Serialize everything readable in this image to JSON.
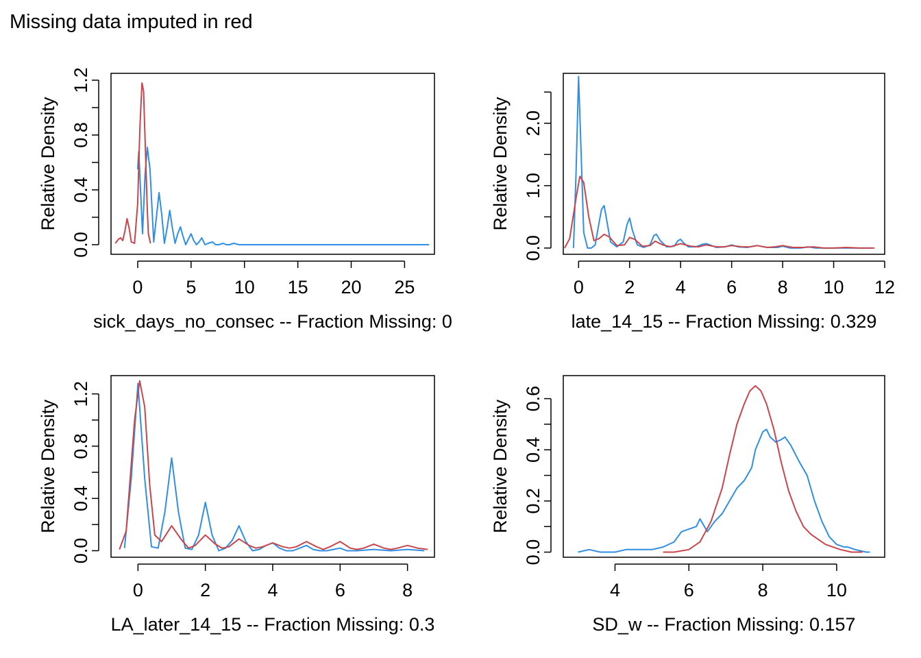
{
  "page_title": "Missing data imputed in red",
  "colors": {
    "observed": "#2f8ee6",
    "imputed": "#c8464b",
    "frame": "#000000"
  },
  "chart_data": [
    {
      "type": "line",
      "title": "",
      "xlabel": "sick_days_no_consec   --  Fraction Missing: 0",
      "ylabel": "Relative Density",
      "xlim": [
        -2.5,
        27.8
      ],
      "ylim": [
        -0.07,
        1.25
      ],
      "xticks": [
        0,
        5,
        10,
        15,
        20,
        25
      ],
      "xtick_labels": [
        "0",
        "5",
        "10",
        "15",
        "20",
        "25"
      ],
      "yticks": [
        0.0,
        0.2,
        0.4,
        0.6,
        0.8,
        1.0,
        1.2
      ],
      "ytick_labels": [
        "0.0",
        "",
        "0.4",
        "",
        "0.8",
        "",
        "1.2"
      ],
      "grid": false,
      "series": [
        {
          "color": "#2f8ee6",
          "x": [
            0.0,
            0.1,
            0.45,
            0.7,
            0.9,
            1.15,
            1.5,
            1.75,
            2.0,
            2.25,
            2.5,
            2.75,
            3.0,
            3.25,
            3.5,
            3.75,
            4.0,
            4.25,
            4.5,
            4.75,
            5.0,
            5.25,
            5.5,
            5.75,
            6.0,
            6.3,
            6.6,
            7.0,
            7.3,
            7.6,
            8.0,
            8.3,
            8.6,
            9.0,
            9.5,
            10.0,
            27.3
          ],
          "y": [
            0.55,
            0.68,
            0.08,
            0.52,
            0.71,
            0.55,
            0.02,
            0.2,
            0.38,
            0.22,
            0.01,
            0.12,
            0.25,
            0.12,
            0.01,
            0.08,
            0.13,
            0.06,
            0.0,
            0.04,
            0.08,
            0.03,
            0.0,
            0.02,
            0.05,
            0.0,
            0.01,
            0.02,
            0.0,
            0.0,
            0.01,
            0.0,
            0.0,
            0.01,
            0.0,
            0.0,
            0.0
          ]
        },
        {
          "color": "#c8464b",
          "x": [
            -2.1,
            -1.8,
            -1.6,
            -1.4,
            -1.2,
            -1.0,
            -0.8,
            -0.6,
            -0.3,
            0.0,
            0.2,
            0.4,
            0.55,
            0.7,
            0.9,
            1.0,
            1.2
          ],
          "y": [
            0.01,
            0.04,
            0.05,
            0.03,
            0.1,
            0.19,
            0.12,
            0.02,
            0.01,
            0.3,
            0.85,
            1.18,
            1.12,
            0.75,
            0.25,
            0.08,
            0.01
          ]
        }
      ]
    },
    {
      "type": "line",
      "title": "",
      "xlabel": "late_14_15   --  Fraction Missing: 0.329",
      "ylabel": "Relative Density",
      "xlim": [
        -0.6,
        12.0
      ],
      "ylim": [
        -0.1,
        2.8
      ],
      "xticks": [
        0,
        2,
        4,
        6,
        8,
        10,
        12
      ],
      "xtick_labels": [
        "0",
        "2",
        "4",
        "6",
        "8",
        "10",
        "12"
      ],
      "yticks": [
        0.0,
        0.5,
        1.0,
        1.5,
        2.0,
        2.5
      ],
      "ytick_labels": [
        "0.0",
        "",
        "1.0",
        "",
        "2.0",
        ""
      ],
      "grid": false,
      "series": [
        {
          "color": "#2f8ee6",
          "x": [
            -0.2,
            -0.1,
            0.0,
            0.1,
            0.2,
            0.35,
            0.5,
            0.65,
            0.8,
            0.9,
            1.0,
            1.1,
            1.25,
            1.5,
            1.75,
            1.9,
            2.0,
            2.1,
            2.3,
            2.55,
            2.8,
            2.95,
            3.05,
            3.2,
            3.45,
            3.75,
            3.9,
            4.0,
            4.1,
            4.3,
            4.6,
            4.85,
            5.0,
            5.15,
            5.4,
            5.75,
            6.0,
            6.25,
            6.6,
            7.0,
            7.4,
            7.8,
            8.0,
            8.3,
            8.7,
            9.0,
            9.3,
            10.0,
            11.5
          ],
          "y": [
            0.0,
            1.2,
            2.75,
            1.5,
            0.25,
            0.0,
            0.0,
            0.05,
            0.4,
            0.62,
            0.68,
            0.45,
            0.1,
            0.02,
            0.1,
            0.38,
            0.48,
            0.3,
            0.05,
            0.01,
            0.05,
            0.2,
            0.22,
            0.12,
            0.02,
            0.03,
            0.12,
            0.14,
            0.09,
            0.02,
            0.02,
            0.06,
            0.07,
            0.05,
            0.01,
            0.02,
            0.05,
            0.02,
            0.01,
            0.04,
            0.01,
            0.01,
            0.03,
            0.0,
            0.0,
            0.02,
            0.0,
            0.0,
            0.0
          ]
        },
        {
          "color": "#c8464b",
          "x": [
            -0.55,
            -0.35,
            -0.1,
            0.05,
            0.2,
            0.4,
            0.6,
            0.8,
            1.0,
            1.2,
            1.5,
            1.8,
            2.0,
            2.2,
            2.5,
            2.8,
            3.0,
            3.3,
            3.6,
            4.0,
            4.4,
            4.7,
            5.0,
            5.4,
            5.7,
            6.0,
            6.4,
            6.7,
            7.0,
            7.4,
            7.7,
            8.0,
            8.4,
            8.8,
            9.2,
            9.6,
            10.0,
            10.5,
            11.0,
            11.6
          ],
          "y": [
            0.0,
            0.15,
            0.8,
            1.15,
            1.05,
            0.5,
            0.12,
            0.15,
            0.22,
            0.18,
            0.04,
            0.05,
            0.17,
            0.14,
            0.03,
            0.04,
            0.11,
            0.05,
            0.02,
            0.07,
            0.03,
            0.02,
            0.05,
            0.02,
            0.02,
            0.04,
            0.02,
            0.02,
            0.04,
            0.01,
            0.02,
            0.04,
            0.01,
            0.01,
            0.02,
            0.0,
            0.0,
            0.01,
            0.0,
            0.0
          ]
        }
      ]
    },
    {
      "type": "line",
      "title": "",
      "xlabel": "LA_later_14_15   --  Fraction Missing: 0.3",
      "ylabel": "Relative Density",
      "xlim": [
        -0.8,
        8.8
      ],
      "ylim": [
        -0.05,
        1.34
      ],
      "xticks": [
        0,
        2,
        4,
        6,
        8
      ],
      "xtick_labels": [
        "0",
        "2",
        "4",
        "6",
        "8"
      ],
      "yticks": [
        0.0,
        0.2,
        0.4,
        0.6,
        0.8,
        1.0,
        1.2
      ],
      "ytick_labels": [
        "0.0",
        "",
        "0.4",
        "",
        "0.8",
        "",
        "1.2"
      ],
      "grid": false,
      "series": [
        {
          "color": "#2f8ee6",
          "x": [
            -0.4,
            -0.2,
            0.0,
            0.2,
            0.4,
            0.6,
            0.8,
            1.0,
            1.2,
            1.4,
            1.6,
            1.8,
            2.0,
            2.2,
            2.4,
            2.6,
            2.8,
            3.0,
            3.2,
            3.4,
            3.6,
            3.8,
            4.0,
            4.2,
            4.4,
            4.6,
            4.8,
            5.0,
            5.2,
            5.4,
            5.6,
            5.8,
            6.0,
            6.2,
            6.5,
            7.0,
            7.5,
            8.0,
            8.5
          ],
          "y": [
            0.02,
            0.55,
            1.28,
            0.55,
            0.03,
            0.02,
            0.3,
            0.71,
            0.3,
            0.02,
            0.01,
            0.12,
            0.37,
            0.12,
            0.0,
            0.02,
            0.08,
            0.19,
            0.07,
            0.0,
            0.01,
            0.04,
            0.06,
            0.02,
            0.0,
            0.0,
            0.02,
            0.04,
            0.01,
            0.0,
            0.0,
            0.01,
            0.02,
            0.0,
            0.0,
            0.01,
            0.0,
            0.01,
            0.0
          ]
        },
        {
          "color": "#c8464b",
          "x": [
            -0.55,
            -0.35,
            -0.1,
            0.05,
            0.2,
            0.35,
            0.5,
            0.7,
            1.0,
            1.3,
            1.5,
            1.7,
            2.0,
            2.3,
            2.5,
            2.7,
            3.0,
            3.3,
            3.5,
            3.7,
            4.0,
            4.3,
            4.5,
            4.7,
            5.0,
            5.3,
            5.5,
            5.7,
            6.0,
            6.3,
            6.5,
            6.7,
            7.0,
            7.3,
            7.5,
            7.7,
            8.0,
            8.3,
            8.6
          ],
          "y": [
            0.01,
            0.15,
            1.0,
            1.3,
            1.1,
            0.5,
            0.12,
            0.07,
            0.19,
            0.08,
            0.02,
            0.04,
            0.12,
            0.05,
            0.02,
            0.03,
            0.09,
            0.04,
            0.02,
            0.03,
            0.06,
            0.03,
            0.02,
            0.03,
            0.07,
            0.03,
            0.01,
            0.03,
            0.07,
            0.02,
            0.01,
            0.02,
            0.05,
            0.02,
            0.01,
            0.02,
            0.04,
            0.02,
            0.01
          ]
        }
      ]
    },
    {
      "type": "line",
      "title": "",
      "xlabel": "SD_w   --  Fraction Missing: 0.157",
      "ylabel": "Relative Density",
      "xlim": [
        2.6,
        11.3
      ],
      "ylim": [
        -0.02,
        0.69
      ],
      "xticks": [
        4,
        6,
        8,
        10
      ],
      "xtick_labels": [
        "4",
        "6",
        "8",
        "10"
      ],
      "yticks": [
        0.0,
        0.1,
        0.2,
        0.3,
        0.4,
        0.5,
        0.6
      ],
      "ytick_labels": [
        "0.0",
        "",
        "0.2",
        "",
        "0.4",
        "",
        "0.6"
      ],
      "grid": false,
      "series": [
        {
          "color": "#2f8ee6",
          "x": [
            3.0,
            3.3,
            3.6,
            4.0,
            4.3,
            4.6,
            5.0,
            5.3,
            5.6,
            5.8,
            6.0,
            6.2,
            6.3,
            6.5,
            6.7,
            6.9,
            7.1,
            7.3,
            7.5,
            7.7,
            7.8,
            8.0,
            8.1,
            8.2,
            8.35,
            8.5,
            8.6,
            8.75,
            9.0,
            9.2,
            9.4,
            9.6,
            9.8,
            10.0,
            10.2,
            10.3,
            10.5,
            10.8,
            10.9
          ],
          "y": [
            0.0,
            0.01,
            0.0,
            0.0,
            0.01,
            0.01,
            0.01,
            0.02,
            0.04,
            0.08,
            0.09,
            0.1,
            0.13,
            0.08,
            0.12,
            0.15,
            0.2,
            0.25,
            0.28,
            0.33,
            0.4,
            0.47,
            0.48,
            0.45,
            0.43,
            0.44,
            0.45,
            0.42,
            0.35,
            0.3,
            0.2,
            0.12,
            0.06,
            0.03,
            0.02,
            0.02,
            0.01,
            0.0,
            0.0
          ]
        },
        {
          "color": "#c8464b",
          "x": [
            5.3,
            5.6,
            6.0,
            6.3,
            6.6,
            6.9,
            7.1,
            7.3,
            7.5,
            7.65,
            7.8,
            7.95,
            8.1,
            8.3,
            8.5,
            8.7,
            8.9,
            9.1,
            9.3,
            9.5,
            9.7,
            9.9,
            10.1,
            10.4,
            10.7
          ],
          "y": [
            0.0,
            0.0,
            0.01,
            0.04,
            0.12,
            0.25,
            0.38,
            0.5,
            0.58,
            0.63,
            0.65,
            0.63,
            0.58,
            0.48,
            0.35,
            0.24,
            0.16,
            0.1,
            0.07,
            0.05,
            0.03,
            0.02,
            0.01,
            0.0,
            0.0
          ]
        }
      ]
    }
  ]
}
